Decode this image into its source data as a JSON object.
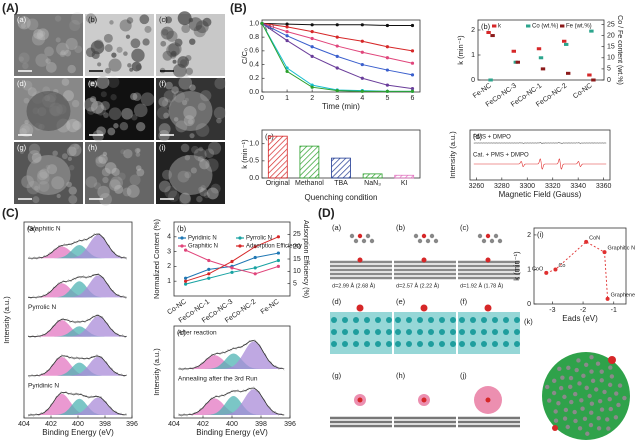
{
  "panels": {
    "A": {
      "label": "(A)",
      "images": [
        "(a)",
        "(b)",
        "(c)",
        "(d)",
        "(e)",
        "(f)",
        "(g)",
        "(h)",
        "(i)"
      ]
    },
    "B": {
      "label": "(B)"
    },
    "C": {
      "label": "(C)"
    },
    "D": {
      "label": "(D)",
      "structures": [
        "(a)",
        "(b)",
        "(c)",
        "(d)",
        "(e)",
        "(f)",
        "(g)",
        "(h)",
        "(j)"
      ],
      "distances": [
        "d=2.99 Å (2.68 Å)",
        "d=2.57 Å (2.22 Å)",
        "d=1.92 Å (1.78 Å)"
      ],
      "sphere": "(k)"
    }
  },
  "chart_data": [
    {
      "type": "line",
      "panel": "(a)",
      "x": [
        0,
        1,
        2,
        3,
        4,
        5,
        6
      ],
      "xlim": [
        0,
        6.3
      ],
      "xticks": [
        0,
        1,
        2,
        3,
        4,
        5,
        6
      ],
      "ylim": [
        0,
        1.05
      ],
      "yticks": [
        {
          "value": 0,
          "label": "0.0"
        },
        {
          "value": 0.2,
          "label": "0.2"
        },
        {
          "value": 0.4,
          "label": "0.4"
        },
        {
          "value": 0.6,
          "label": "0.6"
        },
        {
          "value": 0.8,
          "label": "0.8"
        },
        {
          "value": 1,
          "label": "1.0"
        }
      ],
      "xlabel": "Time (min)",
      "ylabel": "C/C₀",
      "series": [
        {
          "color": "#111111",
          "values": [
            1,
            0.99,
            0.98,
            0.98,
            0.98,
            0.97,
            0.97
          ]
        },
        {
          "color": "#d62728",
          "values": [
            1,
            0.95,
            0.88,
            0.8,
            0.74,
            0.66,
            0.6
          ]
        },
        {
          "color": "#e0457b",
          "values": [
            1,
            0.88,
            0.78,
            0.67,
            0.58,
            0.5,
            0.42
          ]
        },
        {
          "color": "#3a5fcd",
          "values": [
            1,
            0.82,
            0.66,
            0.52,
            0.4,
            0.32,
            0.25
          ]
        },
        {
          "color": "#6a3d9a",
          "values": [
            1,
            0.75,
            0.52,
            0.35,
            0.2,
            0.1,
            0.05
          ]
        },
        {
          "color": "#17becf",
          "values": [
            1,
            0.35,
            0.1,
            0.03,
            0.02,
            0.01,
            0.01
          ]
        },
        {
          "color": "#2ca02c",
          "values": [
            1,
            0.3,
            0.07,
            0.02,
            0.01,
            0.01,
            0.01
          ]
        }
      ]
    },
    {
      "type": "dot",
      "panel": "(b)",
      "categories": [
        "Fe-NC",
        "FeCo-NC-3",
        "FeCo-NC-1",
        "FeCo-NC-2",
        "Co-NC"
      ],
      "ylim": [
        0,
        2.4
      ],
      "yticks": [
        0,
        1,
        2
      ],
      "y2lim": [
        0,
        27
      ],
      "y2ticks": [
        0,
        5,
        10,
        15,
        20,
        25
      ],
      "ylabel": "k (min⁻¹)",
      "y2label": "Co / Fe content (wt.%)",
      "series": [
        {
          "name": "k",
          "color": "#d62728",
          "values": [
            1.9,
            1.15,
            1.25,
            1.55,
            0.2
          ]
        },
        {
          "name": "Co (wt.%)",
          "color": "#2ca58d",
          "axis": "y2",
          "values": [
            0,
            8,
            10,
            16,
            22
          ]
        },
        {
          "name": "Fe (wt.%)",
          "color": "#8b1a1a",
          "axis": "y2",
          "values": [
            20,
            8,
            5,
            3,
            0
          ]
        }
      ]
    },
    {
      "type": "bar",
      "panel": "(c)",
      "categories": [
        "Original",
        "Methanol",
        "TBA",
        "NaN₃",
        "KI"
      ],
      "values": [
        1.22,
        0.93,
        0.58,
        0.12,
        0.08
      ],
      "colors": [
        "#d62728",
        "#2ca02c",
        "#1f3a93",
        "#2ca02c",
        "#e377c2"
      ],
      "ylim": [
        0,
        1.4
      ],
      "yticks": [
        {
          "value": 0,
          "label": "0.0"
        },
        {
          "value": 0.5,
          "label": "0.5"
        },
        {
          "value": 1,
          "label": "1.0"
        }
      ],
      "xlabel": "Quenching condition",
      "ylabel": "k (min⁻¹)"
    },
    {
      "type": "spectrum",
      "panel": "(d)",
      "xlim": [
        3255,
        3365
      ],
      "xticks": [
        3260,
        3280,
        3300,
        3320,
        3340,
        3360
      ],
      "xlabel": "Magnetic Field (Gauss)",
      "ylabel": "Intensity (a.u.)",
      "annotations": [
        "PMS + DMPO",
        "Cat. + PMS + DMPO"
      ]
    },
    {
      "type": "spectrum",
      "panel": "(a)",
      "xlim": [
        404,
        396
      ],
      "xticks": [
        404,
        402,
        400,
        398,
        396
      ],
      "xlabel": "Binding Energy (eV)",
      "ylabel": "Intensity (a.u.)",
      "annotations": [
        "Graphitic N",
        "Pyrrolic N",
        "Pyridinic N"
      ]
    },
    {
      "type": "line",
      "panel": "(b)",
      "categories": [
        "Co-NC",
        "FeCo-NC-1",
        "FeCo-NC-3",
        "FeCo-NC-2",
        "Fe-NC"
      ],
      "ylim": [
        0,
        5
      ],
      "yticks": [
        1,
        2,
        3,
        4
      ],
      "y2lim": [
        0,
        30
      ],
      "y2ticks": [
        5,
        10,
        15,
        20,
        25
      ],
      "ylabel": "Normalized Content (%)",
      "y2label": "Adsorption Efficiency (%)",
      "series": [
        {
          "name": "Pyridinic N",
          "color": "#1f77b4",
          "values": [
            1.2,
            1.8,
            2.0,
            2.6,
            2.9
          ]
        },
        {
          "name": "Pyrrolic N",
          "color": "#17a2a2",
          "values": [
            0.8,
            1.2,
            1.6,
            1.9,
            2.4
          ]
        },
        {
          "name": "Graphitic N",
          "color": "#e0457b",
          "values": [
            3.1,
            2.4,
            1.9,
            1.5,
            2.0
          ]
        },
        {
          "name": "Adsorption Efficiency",
          "color": "#d62728",
          "axis": "y2",
          "values": [
            6,
            9,
            14,
            20,
            24
          ]
        }
      ]
    },
    {
      "type": "spectrum",
      "panel": "(c)",
      "xlim": [
        404,
        396
      ],
      "xticks": [
        404,
        402,
        400,
        398,
        396
      ],
      "xlabel": "Binding Energy (eV)",
      "ylabel": "Intensity (a.u.)",
      "annotations": [
        "After reaction",
        "Annealing after the 3rd Run"
      ]
    },
    {
      "type": "scatter",
      "panel": "(i)",
      "labels": [
        "CoO",
        "Co",
        "CoN",
        "Graphitic N",
        "Graphene"
      ],
      "x": [
        -3.2,
        -2.9,
        -1.9,
        -1.3,
        -1.2
      ],
      "values": [
        0.9,
        1.0,
        1.8,
        1.5,
        0.15
      ],
      "color": "#e03030",
      "xlim": [
        -3.6,
        -0.6
      ],
      "xticks": [
        -3,
        -2,
        -1
      ],
      "ylim": [
        0,
        2.2
      ],
      "yticks": [
        0,
        1,
        2
      ],
      "xlabel": "Eads (eV)",
      "ylabel": "k (min⁻¹)"
    }
  ]
}
